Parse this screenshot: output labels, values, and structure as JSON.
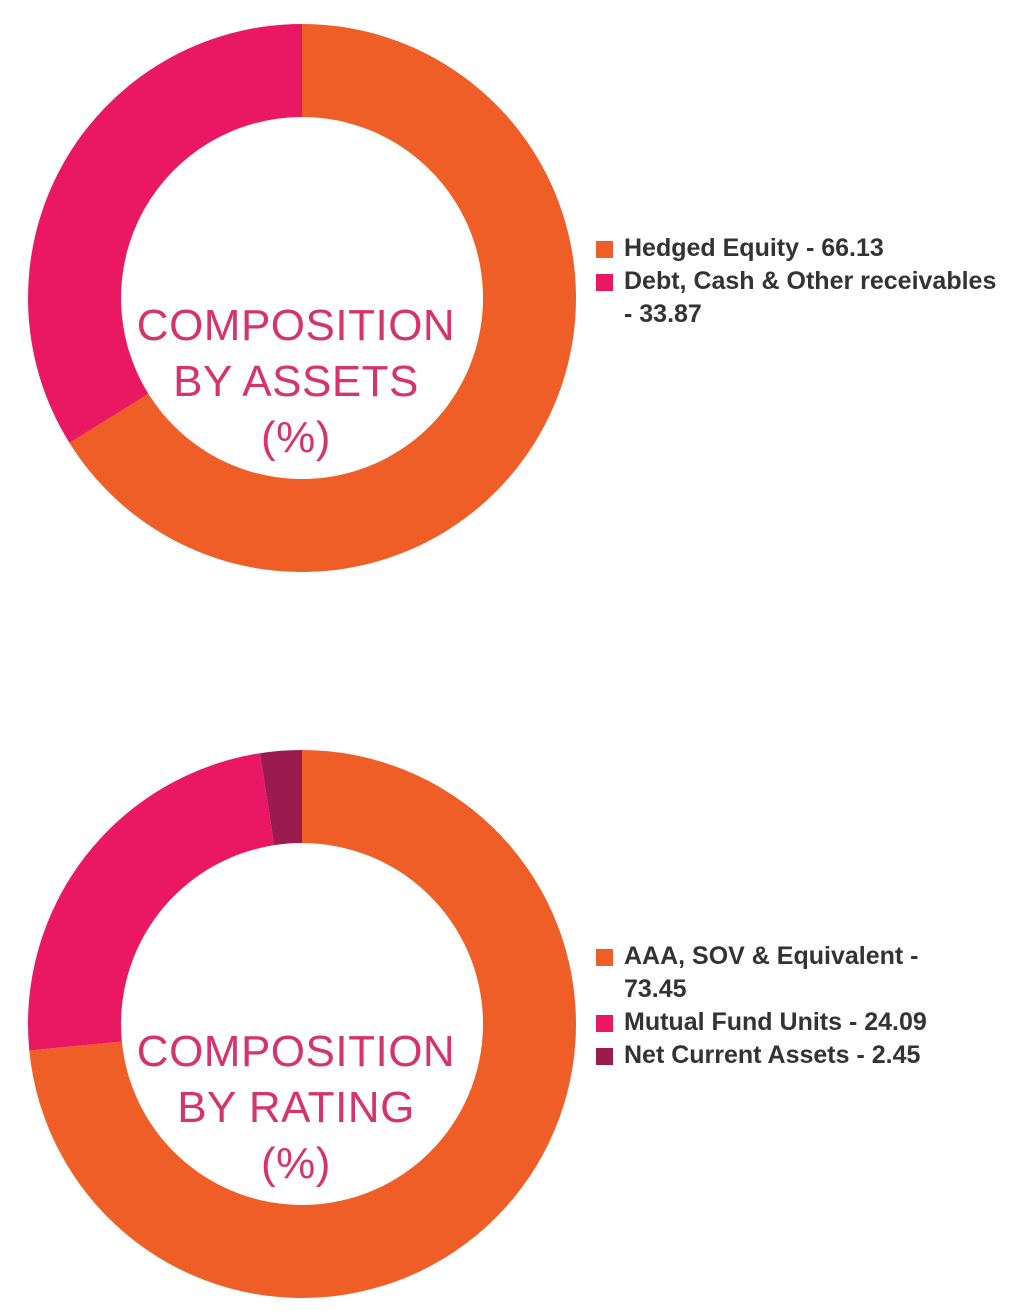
{
  "chart_data": [
    {
      "type": "pie",
      "title_lines": [
        "COMPOSITION",
        "BY ASSETS",
        "(%)"
      ],
      "labels": [
        "Hedged Equity",
        "Debt, Cash & Other receivables"
      ],
      "values": [
        66.13,
        33.87
      ],
      "colors": [
        "#f05e28",
        "#ea1763"
      ],
      "legend": {
        "position": "right",
        "entries": [
          {
            "lines": [
              "Hedged Equity - 66.13"
            ]
          },
          {
            "lines": [
              "Debt, Cash & Other receivables",
              "- 33.87"
            ]
          }
        ]
      }
    },
    {
      "type": "pie",
      "title_lines": [
        "COMPOSITION",
        "BY RATING",
        "(%)"
      ],
      "labels": [
        "AAA, SOV & Equivalent",
        "Mutual Fund Units",
        "Net Current Assets"
      ],
      "values": [
        73.45,
        24.09,
        2.45
      ],
      "colors": [
        "#f05e28",
        "#ea1763",
        "#9b1b4d"
      ],
      "legend": {
        "position": "right",
        "entries": [
          {
            "lines": [
              "AAA, SOV & Equivalent -",
              "73.45"
            ]
          },
          {
            "lines": [
              "Mutual Fund Units - 24.09"
            ]
          },
          {
            "lines": [
              "Net Current Assets - 2.45"
            ]
          }
        ]
      }
    }
  ]
}
